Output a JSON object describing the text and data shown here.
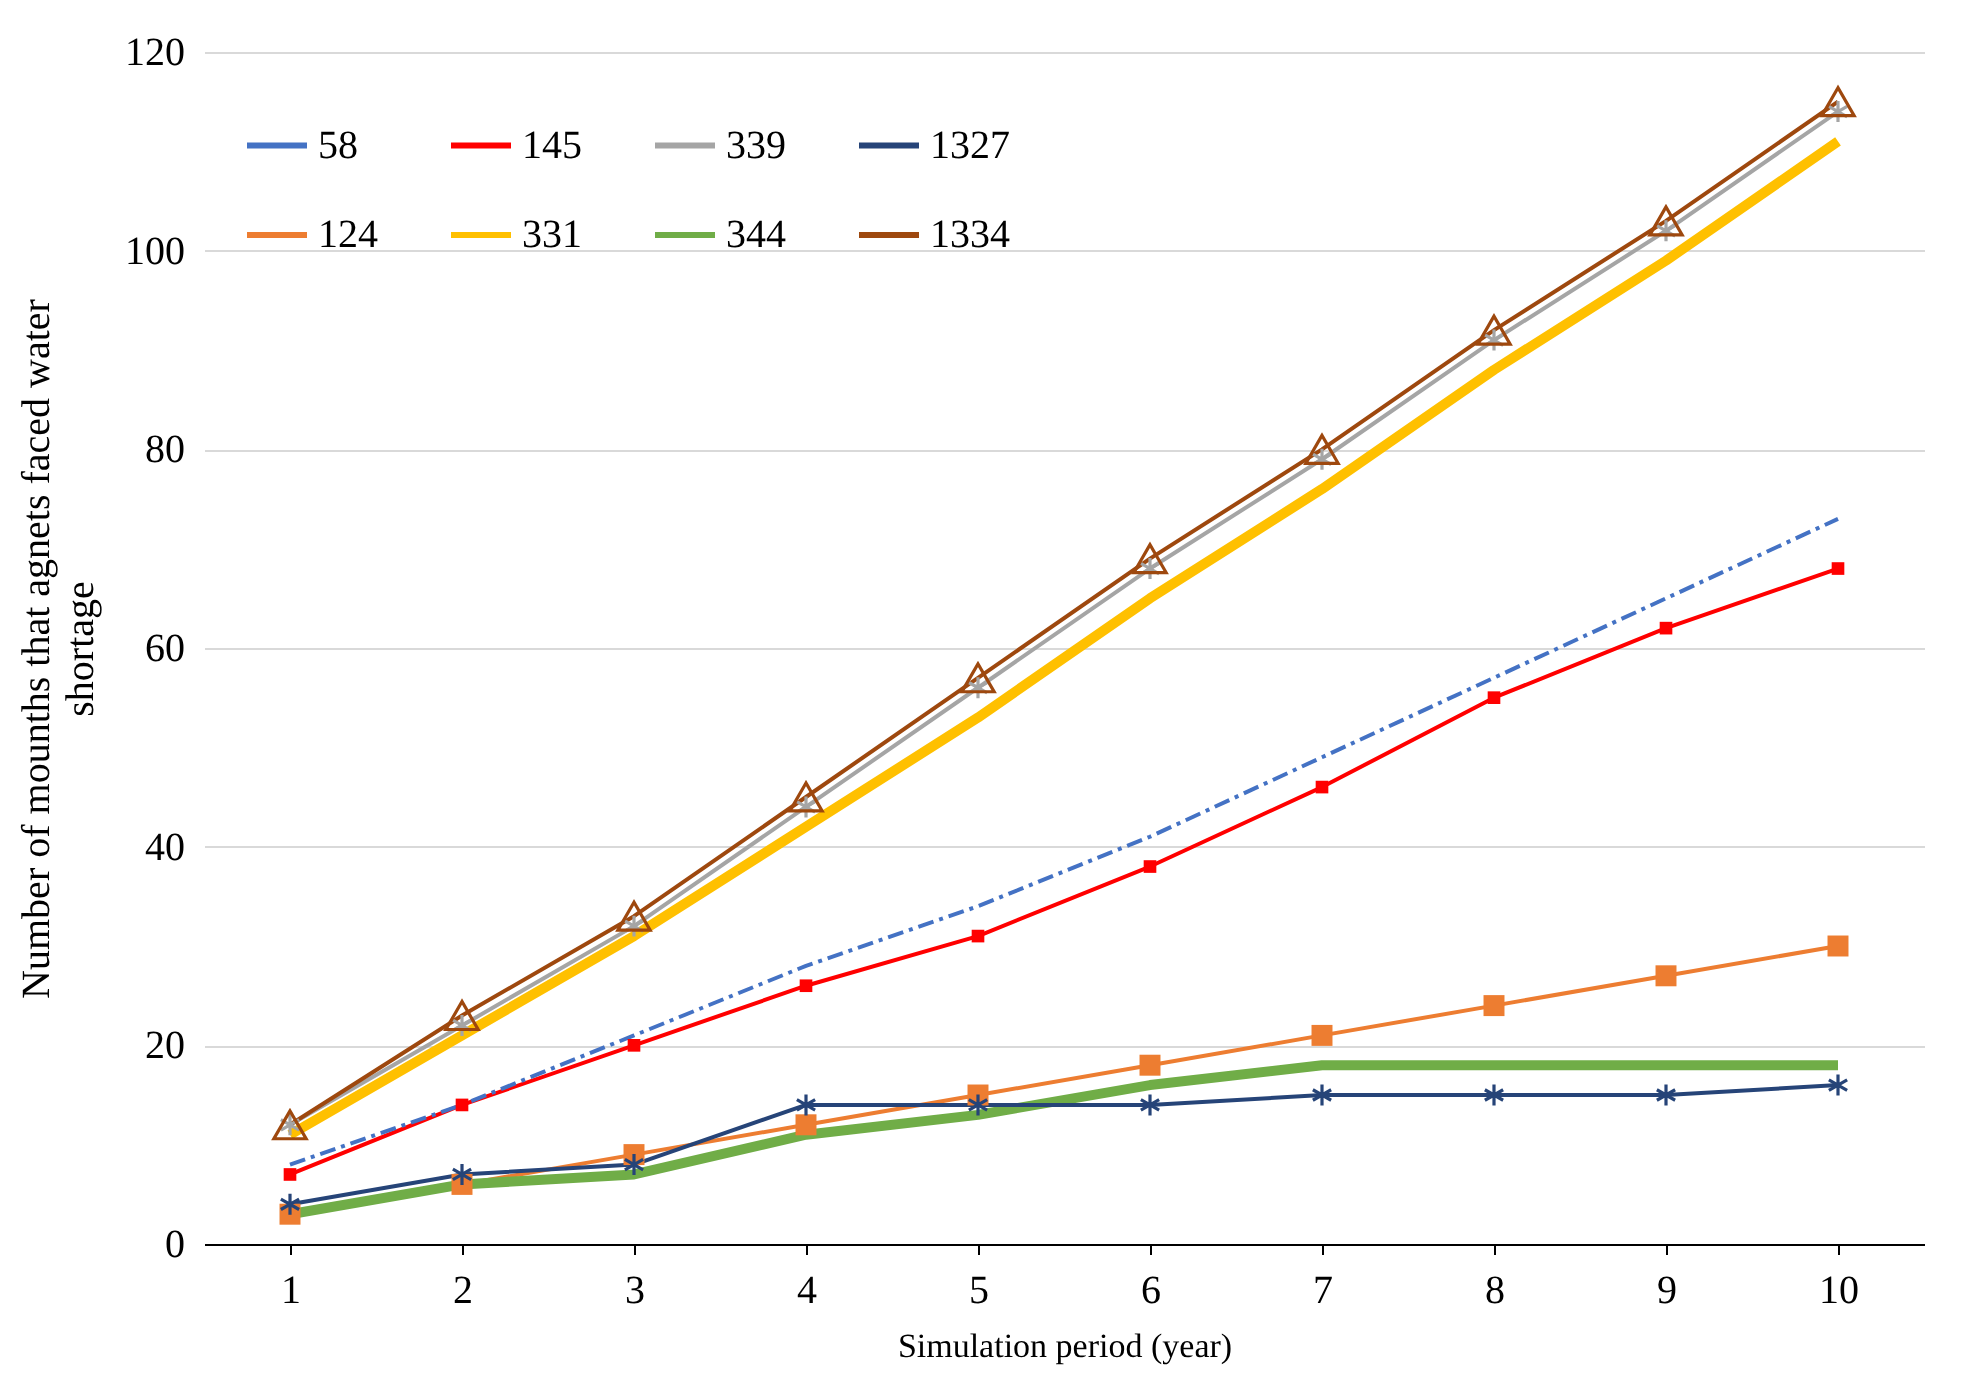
{
  "chart_data": {
    "type": "line",
    "xlabel": "Simulation period (year)",
    "ylabel": "Number of mounths that agnets faced water shortage",
    "categories": [
      "1",
      "2",
      "3",
      "4",
      "5",
      "6",
      "7",
      "8",
      "9",
      "10"
    ],
    "ylim": [
      0,
      120
    ],
    "yticks": [
      0,
      20,
      40,
      60,
      80,
      100,
      120
    ],
    "grid": "y",
    "legend": "top left",
    "series": [
      {
        "name": "58",
        "color": "#4472c4",
        "line_style": "dashdot",
        "marker": "none",
        "values": [
          8,
          14,
          21,
          28,
          34,
          41,
          49,
          57,
          65,
          73
        ]
      },
      {
        "name": "124",
        "color": "#ed7d31",
        "marker": "square",
        "values": [
          3,
          6,
          9,
          12,
          15,
          18,
          21,
          24,
          27,
          30
        ]
      },
      {
        "name": "145",
        "color": "#ff0000",
        "marker": "square",
        "values": [
          7,
          14,
          20,
          26,
          31,
          38,
          46,
          55,
          62,
          68
        ]
      },
      {
        "name": "331",
        "color": "#ffc000",
        "marker": "none",
        "values": [
          11,
          21,
          31,
          42,
          53,
          65,
          76,
          88,
          99,
          111
        ]
      },
      {
        "name": "339",
        "color": "#a5a5a5",
        "marker": "cross",
        "values": [
          12,
          22,
          32,
          44,
          56,
          68,
          79,
          91,
          102,
          114
        ]
      },
      {
        "name": "344",
        "color": "#70ad47",
        "marker": "none",
        "values": [
          3,
          6,
          7,
          11,
          13,
          16,
          18,
          18,
          18,
          18
        ]
      },
      {
        "name": "1327",
        "color": "#264478",
        "marker": "cross",
        "values": [
          4,
          7,
          8,
          14,
          14,
          14,
          15,
          15,
          15,
          16
        ]
      },
      {
        "name": "1334",
        "color": "#9e480e",
        "marker": "triangle",
        "values": [
          12,
          23,
          33,
          45,
          57,
          69,
          80,
          92,
          103,
          115
        ]
      }
    ]
  }
}
